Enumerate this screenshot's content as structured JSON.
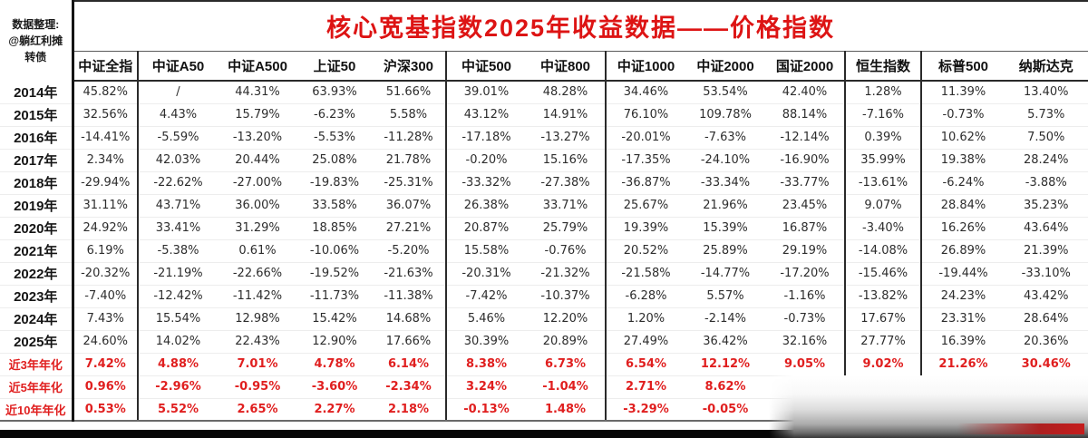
{
  "title": "核心宽基指数2025年收益数据——价格指数",
  "source_note": {
    "line1": "数据整理:",
    "line2": "@躺红利摊",
    "line3": "转债"
  },
  "colors": {
    "title_red": "#dd1414",
    "summary_red": "#e01f1f",
    "header_text": "#111111",
    "body_text": "#2d2d2d",
    "grid_strong": "#2a2a2a",
    "grid_light": "#ededed",
    "bottom_bar": "#060606",
    "redaction_bar_red": "#c51d1d"
  },
  "chart_data": {
    "type": "table",
    "title": "核心宽基指数2025年收益数据——价格指数",
    "columns": [
      "中证全指",
      "中证A50",
      "中证A500",
      "上证50",
      "沪深300",
      "中证500",
      "中证800",
      "中证1000",
      "中证2000",
      "国证2000",
      "恒生指数",
      "标普500",
      "纳斯达克"
    ],
    "row_labels": [
      "2014年",
      "2015年",
      "2016年",
      "2017年",
      "2018年",
      "2019年",
      "2020年",
      "2021年",
      "2022年",
      "2023年",
      "2024年",
      "2025年",
      "近3年年化",
      "近5年年化",
      "近10年年化"
    ],
    "rows": [
      [
        "45.82%",
        "/",
        "44.31%",
        "63.93%",
        "51.66%",
        "39.01%",
        "48.28%",
        "34.46%",
        "53.54%",
        "42.40%",
        "1.28%",
        "11.39%",
        "13.40%"
      ],
      [
        "32.56%",
        "4.43%",
        "15.79%",
        "-6.23%",
        "5.58%",
        "43.12%",
        "14.91%",
        "76.10%",
        "109.78%",
        "88.14%",
        "-7.16%",
        "-0.73%",
        "5.73%"
      ],
      [
        "-14.41%",
        "-5.59%",
        "-13.20%",
        "-5.53%",
        "-11.28%",
        "-17.18%",
        "-13.27%",
        "-20.01%",
        "-7.63%",
        "-12.14%",
        "0.39%",
        "10.62%",
        "7.50%"
      ],
      [
        "2.34%",
        "42.03%",
        "20.44%",
        "25.08%",
        "21.78%",
        "-0.20%",
        "15.16%",
        "-17.35%",
        "-24.10%",
        "-16.90%",
        "35.99%",
        "19.38%",
        "28.24%"
      ],
      [
        "-29.94%",
        "-22.62%",
        "-27.00%",
        "-19.83%",
        "-25.31%",
        "-33.32%",
        "-27.38%",
        "-36.87%",
        "-33.34%",
        "-33.77%",
        "-13.61%",
        "-6.24%",
        "-3.88%"
      ],
      [
        "31.11%",
        "43.71%",
        "36.00%",
        "33.58%",
        "36.07%",
        "26.38%",
        "33.71%",
        "25.67%",
        "21.96%",
        "23.45%",
        "9.07%",
        "28.84%",
        "35.23%"
      ],
      [
        "24.92%",
        "33.41%",
        "31.29%",
        "18.85%",
        "27.21%",
        "20.87%",
        "25.79%",
        "19.39%",
        "15.39%",
        "16.87%",
        "-3.40%",
        "16.26%",
        "43.64%"
      ],
      [
        "6.19%",
        "-5.38%",
        "0.61%",
        "-10.06%",
        "-5.20%",
        "15.58%",
        "-0.76%",
        "20.52%",
        "25.89%",
        "29.19%",
        "-14.08%",
        "26.89%",
        "21.39%"
      ],
      [
        "-20.32%",
        "-21.19%",
        "-22.66%",
        "-19.52%",
        "-21.63%",
        "-20.31%",
        "-21.32%",
        "-21.58%",
        "-14.77%",
        "-17.20%",
        "-15.46%",
        "-19.44%",
        "-33.10%"
      ],
      [
        "-7.40%",
        "-12.42%",
        "-11.42%",
        "-11.73%",
        "-11.38%",
        "-7.42%",
        "-10.37%",
        "-6.28%",
        "5.57%",
        "-1.16%",
        "-13.82%",
        "24.23%",
        "43.42%"
      ],
      [
        "7.43%",
        "15.54%",
        "12.98%",
        "15.42%",
        "14.68%",
        "5.46%",
        "12.20%",
        "1.20%",
        "-2.14%",
        "-0.73%",
        "17.67%",
        "23.31%",
        "28.64%"
      ],
      [
        "24.60%",
        "14.02%",
        "22.43%",
        "12.90%",
        "17.66%",
        "30.39%",
        "20.89%",
        "27.49%",
        "36.42%",
        "32.16%",
        "27.77%",
        "16.39%",
        "20.36%"
      ],
      [
        "7.42%",
        "4.88%",
        "7.01%",
        "4.78%",
        "6.14%",
        "8.38%",
        "6.73%",
        "6.54%",
        "12.12%",
        "9.05%",
        "9.02%",
        "21.26%",
        "30.46%"
      ],
      [
        "0.96%",
        "-2.96%",
        "-0.95%",
        "-3.60%",
        "-2.34%",
        "3.24%",
        "-1.04%",
        "2.71%",
        "8.62%",
        "",
        "",
        "",
        ""
      ],
      [
        "0.53%",
        "5.52%",
        "2.65%",
        "2.27%",
        "2.18%",
        "-0.13%",
        "1.48%",
        "-3.29%",
        "-0.05%",
        "",
        "",
        "",
        ""
      ]
    ]
  }
}
